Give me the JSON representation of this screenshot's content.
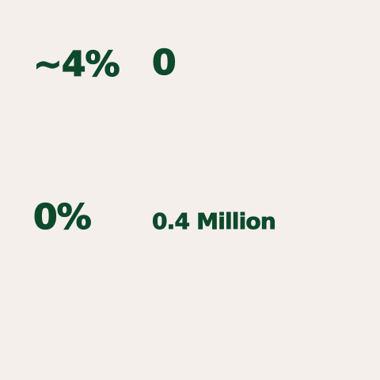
{
  "stats": [
    {
      "value": "~4%"
    },
    {
      "value": "0"
    },
    {
      "value": "0%"
    },
    {
      "value": "0.4 Million"
    }
  ],
  "colors": {
    "background": "#f4efea",
    "text": "#0d4a2b"
  }
}
